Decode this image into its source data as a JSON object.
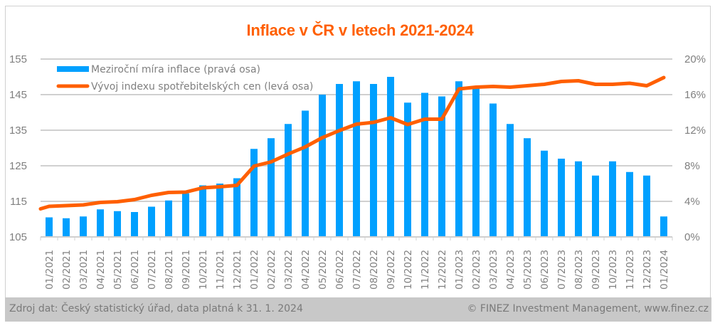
{
  "chart_data": {
    "type": "bar+line",
    "title": "Inflace v ČR v letech 2021-2024",
    "categories": [
      "01/2021",
      "02/2021",
      "03/2021",
      "04/2021",
      "05/2021",
      "06/2021",
      "07/2021",
      "08/2021",
      "09/2021",
      "10/2021",
      "11/2021",
      "12/2021",
      "01/2022",
      "02/2022",
      "03/2022",
      "04/2022",
      "05/2022",
      "06/2022",
      "07/2022",
      "08/2022",
      "09/2022",
      "10/2022",
      "11/2022",
      "12/2022",
      "01/2023",
      "02/2023",
      "03/2023",
      "04/2023",
      "05/2023",
      "06/2023",
      "07/2023",
      "08/2023",
      "09/2023",
      "10/2023",
      "11/2023",
      "12/2023",
      "01/2024"
    ],
    "series": [
      {
        "name": "Meziroční míra inflace (pravá osa)",
        "type": "bar",
        "axis": "right",
        "color": "#00a0ff",
        "unit": "%",
        "values": [
          2.2,
          2.1,
          2.3,
          3.1,
          2.9,
          2.8,
          3.4,
          4.1,
          4.9,
          5.8,
          6.0,
          6.6,
          9.9,
          11.1,
          12.7,
          14.2,
          16.0,
          17.2,
          17.5,
          17.2,
          18.0,
          15.1,
          16.2,
          15.8,
          17.5,
          16.7,
          15.0,
          12.7,
          11.1,
          9.7,
          8.8,
          8.5,
          6.9,
          8.5,
          7.3,
          6.9,
          2.3
        ]
      },
      {
        "name": "Vývoj indexu spotřebitelských cen (levá osa)",
        "type": "line",
        "axis": "left",
        "color": "#ff5f00",
        "start_value": 112.9,
        "values": [
          113.6,
          113.8,
          114.0,
          114.7,
          114.9,
          115.5,
          116.7,
          117.5,
          117.6,
          118.8,
          119.1,
          119.5,
          124.9,
          126.1,
          128.3,
          130.3,
          132.9,
          134.9,
          136.7,
          137.2,
          138.5,
          136.6,
          138.1,
          138.1,
          146.6,
          147.1,
          147.3,
          147.1,
          147.5,
          147.9,
          148.7,
          148.9,
          147.9,
          147.9,
          148.2,
          147.5,
          149.8
        ]
      }
    ],
    "left_axis": {
      "ylim": [
        105,
        155
      ],
      "ticks": [
        "105",
        "115",
        "125",
        "135",
        "145",
        "155"
      ]
    },
    "right_axis": {
      "ylim": [
        0,
        20
      ],
      "ticks": [
        "0%",
        "4%",
        "8%",
        "12%",
        "16%",
        "20%"
      ]
    },
    "grid": true,
    "legend_position": "top-left"
  },
  "footer": {
    "source": "Zdroj dat: Český statistický úřad, data platná k 31. 1. 2024",
    "copyright": "© FINEZ Investment Management, www.finez.cz"
  }
}
